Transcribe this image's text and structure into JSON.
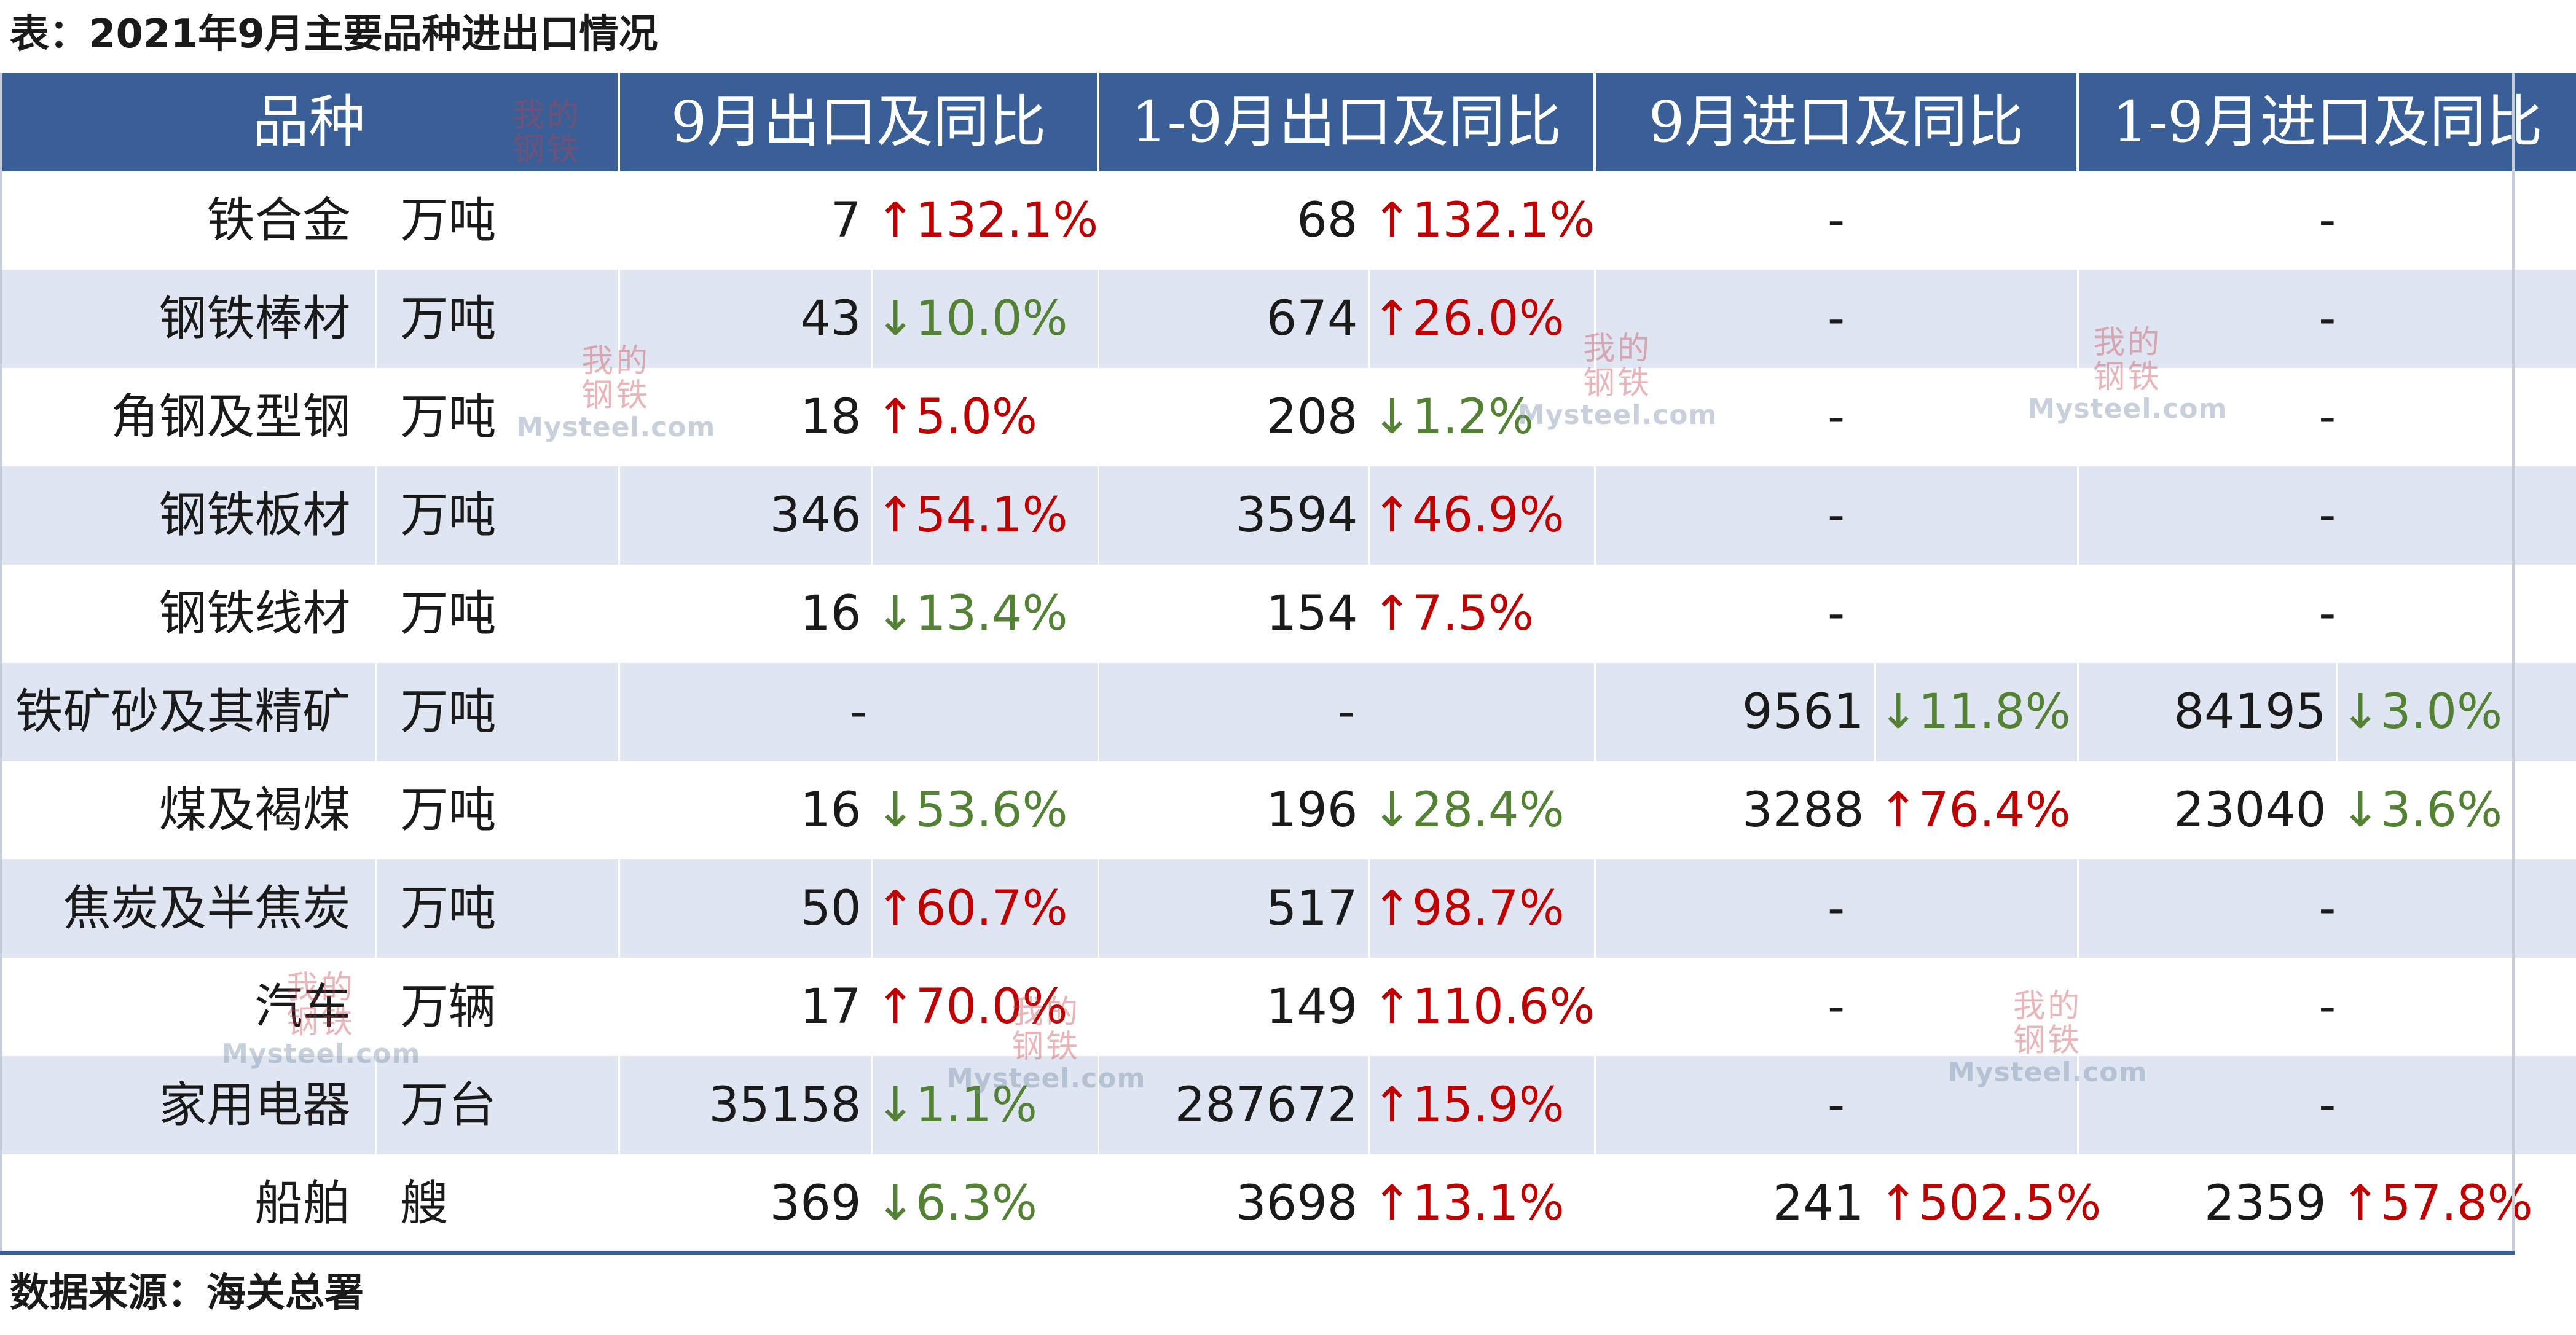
{
  "caption": "表：2021年9月主要品种进出口情况",
  "source": "数据来源：海关总署",
  "colors": {
    "header_bg": "#3a5f96",
    "row_shade": "#dfe5f1",
    "up": "#c00000",
    "down": "#548235"
  },
  "arrows": {
    "up": "↑",
    "down": "↓"
  },
  "header": {
    "variety": "品种",
    "col1": "9月出口及同比",
    "col2": "1-9月出口及同比",
    "col3": "9月进口及同比",
    "col4": "1-9月进口及同比"
  },
  "rows": [
    {
      "name": "铁合金",
      "unit": "万吨",
      "c1": {
        "num": "7",
        "pct": "132.1%",
        "dir": "up"
      },
      "c2": {
        "num": "68",
        "pct": "132.1%",
        "dir": "up"
      },
      "c3": {
        "dash": "-"
      },
      "c4": {
        "dash": "-"
      }
    },
    {
      "name": "钢铁棒材",
      "unit": "万吨",
      "c1": {
        "num": "43",
        "pct": "10.0%",
        "dir": "down"
      },
      "c2": {
        "num": "674",
        "pct": "26.0%",
        "dir": "up"
      },
      "c3": {
        "dash": "-"
      },
      "c4": {
        "dash": "-"
      }
    },
    {
      "name": "角钢及型钢",
      "unit": "万吨",
      "c1": {
        "num": "18",
        "pct": "5.0%",
        "dir": "up"
      },
      "c2": {
        "num": "208",
        "pct": "1.2%",
        "dir": "down"
      },
      "c3": {
        "dash": "-"
      },
      "c4": {
        "dash": "-"
      }
    },
    {
      "name": "钢铁板材",
      "unit": "万吨",
      "c1": {
        "num": "346",
        "pct": "54.1%",
        "dir": "up"
      },
      "c2": {
        "num": "3594",
        "pct": "46.9%",
        "dir": "up"
      },
      "c3": {
        "dash": "-"
      },
      "c4": {
        "dash": "-"
      }
    },
    {
      "name": "钢铁线材",
      "unit": "万吨",
      "c1": {
        "num": "16",
        "pct": "13.4%",
        "dir": "down"
      },
      "c2": {
        "num": "154",
        "pct": "7.5%",
        "dir": "up"
      },
      "c3": {
        "dash": "-"
      },
      "c4": {
        "dash": "-"
      }
    },
    {
      "name": "铁矿砂及其精矿",
      "unit": "万吨",
      "c1": {
        "dash": "-"
      },
      "c2": {
        "dash": "-"
      },
      "c3": {
        "num": "9561",
        "pct": "11.8%",
        "dir": "down"
      },
      "c4": {
        "num": "84195",
        "pct": "3.0%",
        "dir": "down"
      }
    },
    {
      "name": "煤及褐煤",
      "unit": "万吨",
      "c1": {
        "num": "16",
        "pct": "53.6%",
        "dir": "down"
      },
      "c2": {
        "num": "196",
        "pct": "28.4%",
        "dir": "down"
      },
      "c3": {
        "num": "3288",
        "pct": "76.4%",
        "dir": "up"
      },
      "c4": {
        "num": "23040",
        "pct": "3.6%",
        "dir": "down"
      }
    },
    {
      "name": "焦炭及半焦炭",
      "unit": "万吨",
      "c1": {
        "num": "50",
        "pct": "60.7%",
        "dir": "up"
      },
      "c2": {
        "num": "517",
        "pct": "98.7%",
        "dir": "up"
      },
      "c3": {
        "dash": "-"
      },
      "c4": {
        "dash": "-"
      }
    },
    {
      "name": "汽车",
      "unit": "万辆",
      "c1": {
        "num": "17",
        "pct": "70.0%",
        "dir": "up"
      },
      "c2": {
        "num": "149",
        "pct": "110.6%",
        "dir": "up"
      },
      "c3": {
        "dash": "-"
      },
      "c4": {
        "dash": "-"
      }
    },
    {
      "name": "家用电器",
      "unit": "万台",
      "c1": {
        "num": "35158",
        "pct": "1.1%",
        "dir": "down"
      },
      "c2": {
        "num": "287672",
        "pct": "15.9%",
        "dir": "up"
      },
      "c3": {
        "dash": "-"
      },
      "c4": {
        "dash": "-"
      }
    },
    {
      "name": "船舶",
      "unit": "艘",
      "c1": {
        "num": "369",
        "pct": "6.3%",
        "dir": "down"
      },
      "c2": {
        "num": "3698",
        "pct": "13.1%",
        "dir": "up"
      },
      "c3": {
        "num": "241",
        "pct": "502.5%",
        "dir": "up"
      },
      "c4": {
        "num": "2359",
        "pct": "57.8%",
        "dir": "up"
      }
    }
  ],
  "watermark": {
    "cn": "我的钢铁",
    "en": "Mysteel.com"
  }
}
